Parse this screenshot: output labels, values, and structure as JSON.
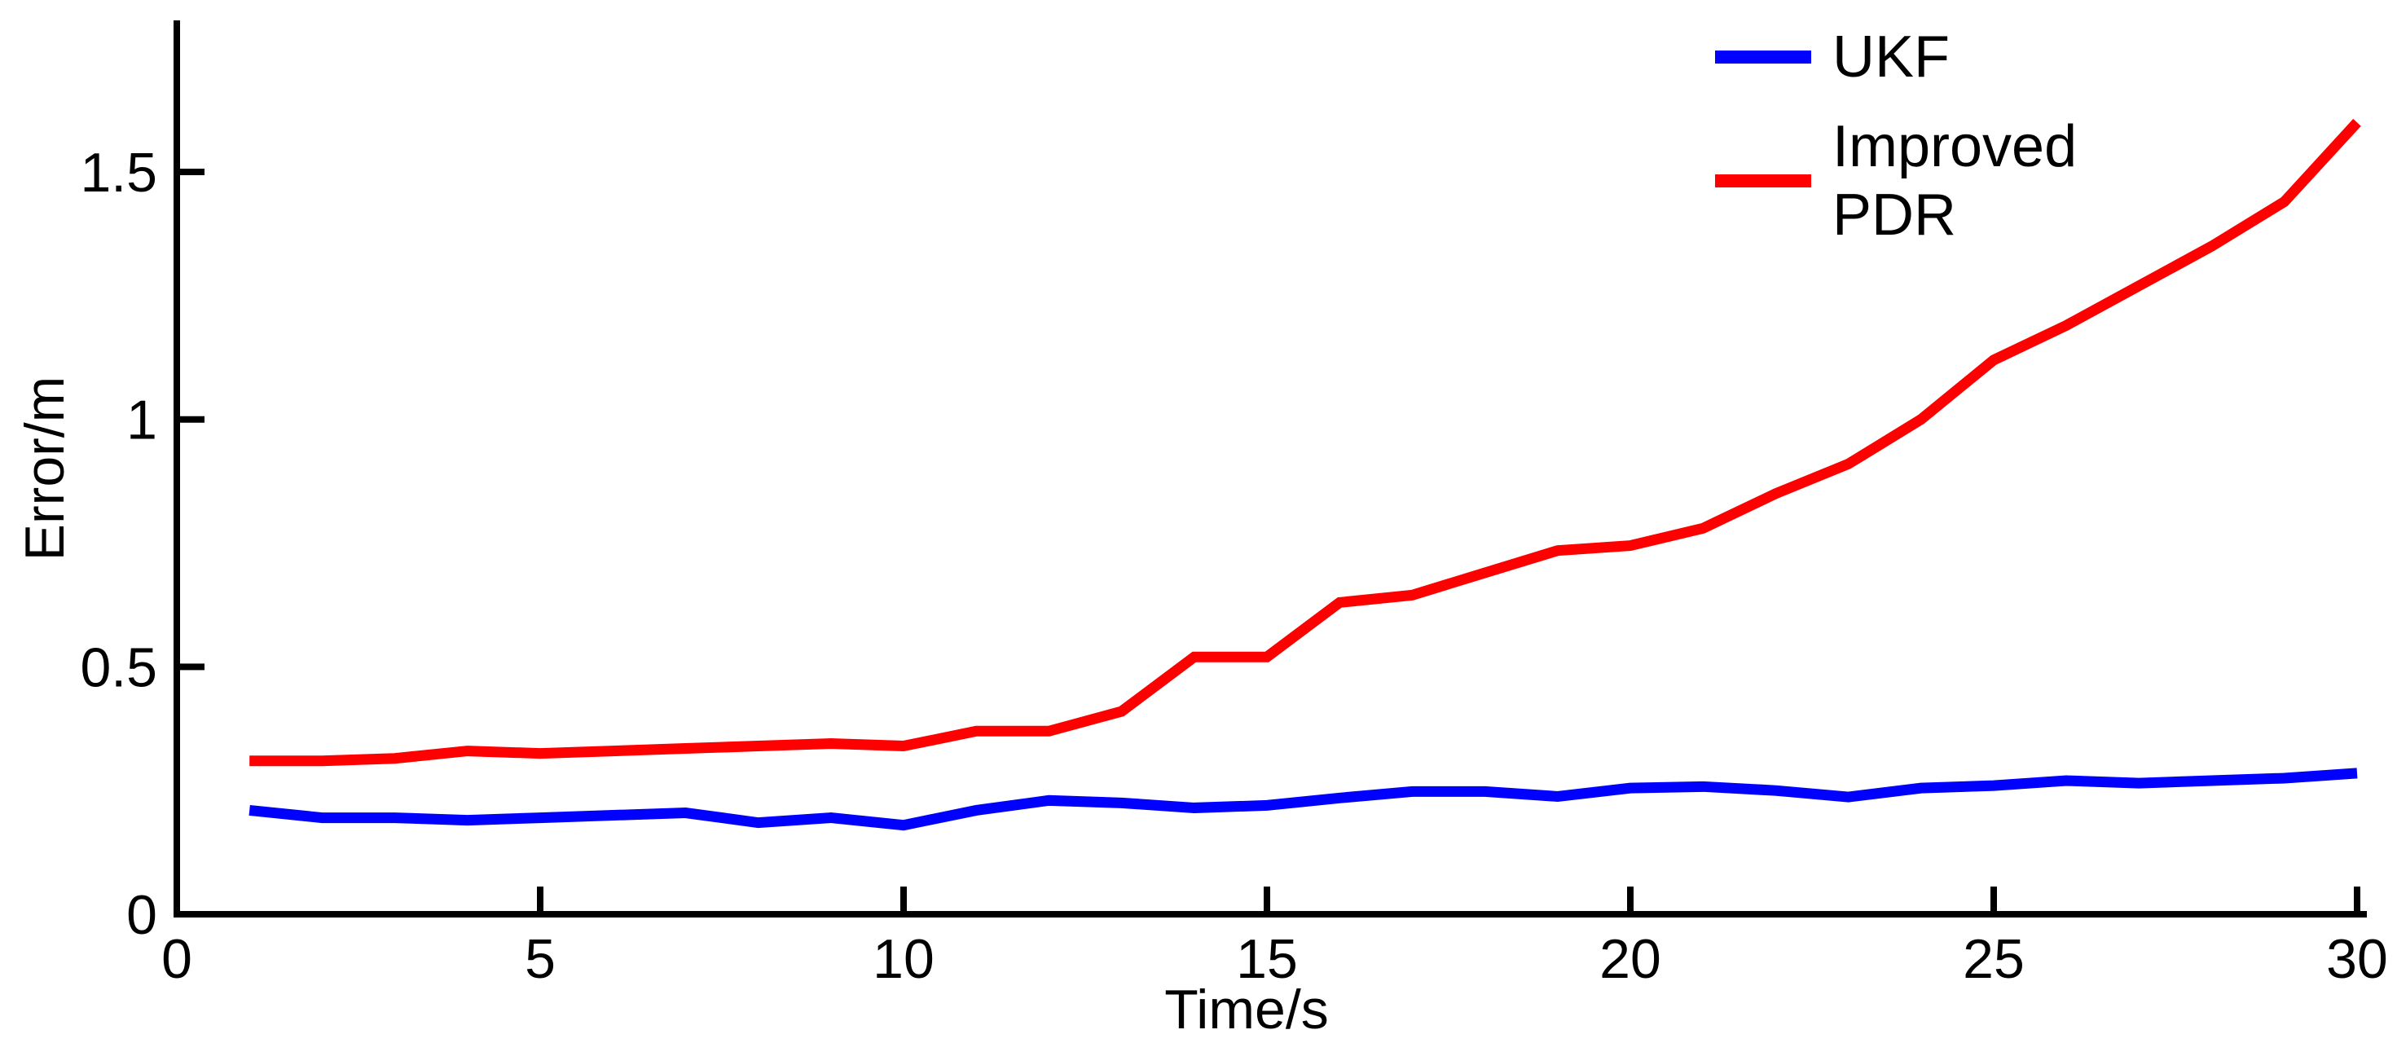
{
  "chart_data": {
    "type": "line",
    "xlabel": "Time/s",
    "ylabel": "Error/m",
    "xlim": [
      0,
      30
    ],
    "ylim": [
      0,
      1.8
    ],
    "x_ticks": [
      0,
      5,
      10,
      15,
      20,
      25,
      30
    ],
    "y_ticks": [
      0,
      0.5,
      1,
      1.5
    ],
    "grid": false,
    "legend_position": "top-right",
    "x": [
      1,
      2,
      3,
      4,
      5,
      6,
      7,
      8,
      9,
      10,
      11,
      12,
      13,
      14,
      15,
      16,
      17,
      18,
      19,
      20,
      21,
      22,
      23,
      24,
      25,
      26,
      27,
      28,
      29,
      30
    ],
    "series": [
      {
        "name": "UKF",
        "color": "#0000ff",
        "values": [
          0.21,
          0.195,
          0.195,
          0.19,
          0.195,
          0.2,
          0.205,
          0.185,
          0.195,
          0.18,
          0.21,
          0.23,
          0.225,
          0.215,
          0.22,
          0.235,
          0.248,
          0.248,
          0.238,
          0.255,
          0.258,
          0.25,
          0.237,
          0.255,
          0.26,
          0.27,
          0.265,
          0.27,
          0.275,
          0.285
        ]
      },
      {
        "name": "Improved PDR",
        "color": "#ff0000",
        "values": [
          0.31,
          0.31,
          0.315,
          0.33,
          0.325,
          0.33,
          0.335,
          0.34,
          0.345,
          0.34,
          0.37,
          0.37,
          0.41,
          0.52,
          0.52,
          0.63,
          0.645,
          0.69,
          0.735,
          0.745,
          0.78,
          0.85,
          0.91,
          1.0,
          1.12,
          1.19,
          1.27,
          1.35,
          1.44,
          1.6
        ]
      }
    ]
  }
}
